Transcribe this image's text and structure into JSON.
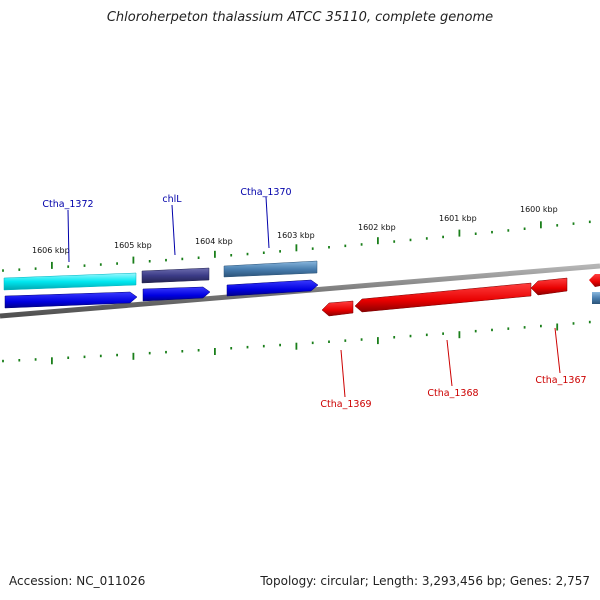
{
  "title": "Chloroherpeton thalassium ATCC 35110, complete genome",
  "footer": {
    "accession": "Accession: NC_011026",
    "summary": "Topology: circular; Length: 3,293,456 bp; Genes: 2,757"
  },
  "kbp_labels": [
    "1606 kbp",
    "1605 kbp",
    "1604 kbp",
    "1603 kbp",
    "1602 kbp",
    "1601 kbp",
    "1600 kbp"
  ],
  "gene_labels": {
    "top": [
      "Ctha_1372",
      "chlL",
      "Ctha_1370"
    ],
    "bottom": [
      "Ctha_1369",
      "Ctha_1368",
      "Ctha_1367"
    ]
  },
  "colors": {
    "forward_gene": "#0000ee",
    "reverse_gene": "#ee0000",
    "cyan_feature": "#00e5ee",
    "dark_feature": "#3c3c88",
    "steel_feature": "#4a7fb0",
    "tick": "#1a7f1a",
    "backbone": "#808080",
    "label_top": "#0000aa",
    "label_bottom": "#cc0000"
  }
}
